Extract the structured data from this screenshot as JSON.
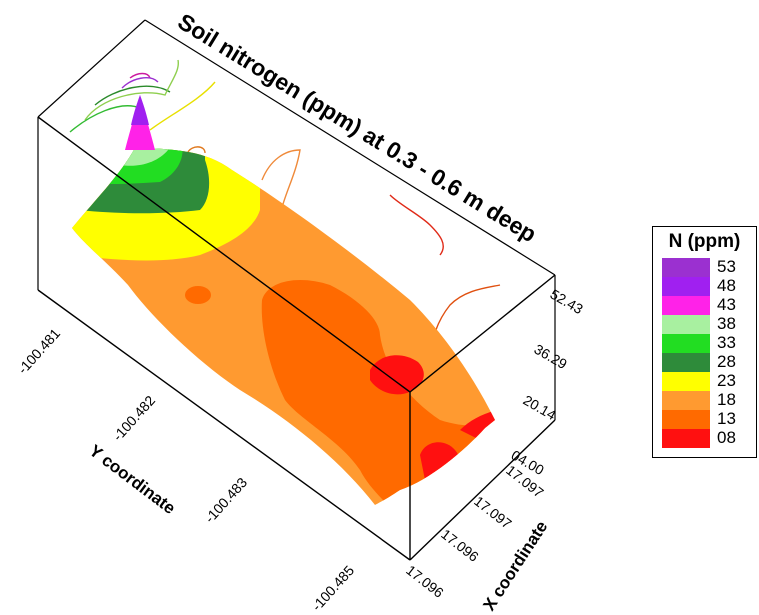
{
  "chart_data": {
    "type": "contour-surface-3d",
    "title": "Soil nitrogen (ppm) at 0.3 - 0.6 m deep",
    "x_axis": {
      "label": "X coordinate",
      "ticks": [
        "17.096",
        "17.096",
        "17.097",
        "17.097"
      ]
    },
    "y_axis": {
      "label": "Y coordinate",
      "ticks": [
        "-100.481",
        "-100.482",
        "-100.483",
        "-100.485"
      ]
    },
    "z_axis": {
      "label": "",
      "ticks": [
        "04.00",
        "20.14",
        "36.29",
        "52.43"
      ],
      "range": [
        4.0,
        52.43
      ]
    },
    "legend": {
      "title": "N (ppm)",
      "placement": "right",
      "levels": [
        {
          "value": "53",
          "color": "#9b30d0"
        },
        {
          "value": "48",
          "color": "#a020f0"
        },
        {
          "value": "43",
          "color": "#ff22e8"
        },
        {
          "value": "38",
          "color": "#a8f0a0"
        },
        {
          "value": "33",
          "color": "#22dd22"
        },
        {
          "value": "28",
          "color": "#2e8b3a"
        },
        {
          "value": "23",
          "color": "#ffff00"
        },
        {
          "value": "18",
          "color": "#ff9a30"
        },
        {
          "value": "13",
          "color": "#ff6a00"
        },
        {
          "value": "08",
          "color": "#ff1010"
        }
      ]
    }
  }
}
